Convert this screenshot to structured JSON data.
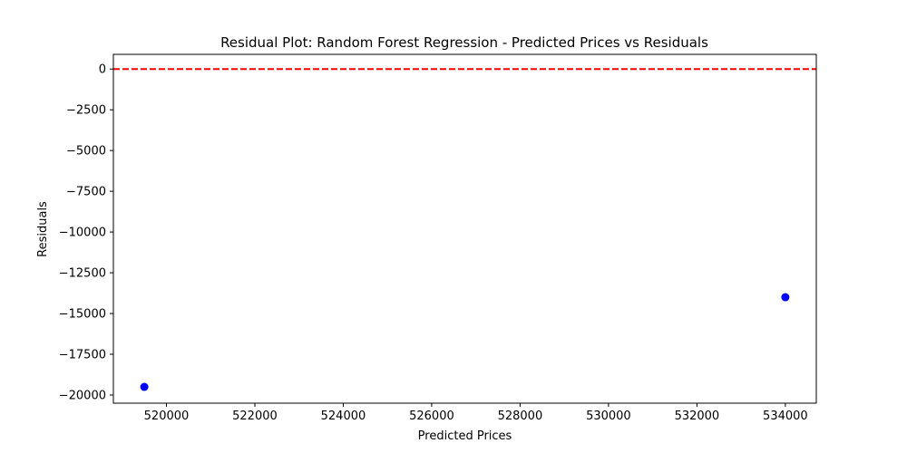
{
  "chart_data": {
    "type": "scatter",
    "title": "Residual Plot: Random Forest Regression - Predicted Prices vs Residuals",
    "xlabel": "Predicted Prices",
    "ylabel": "Residuals",
    "xlim": [
      518800,
      534700
    ],
    "ylim": [
      -20500,
      900
    ],
    "xticks": [
      520000,
      522000,
      524000,
      526000,
      528000,
      530000,
      532000,
      534000
    ],
    "xtick_labels": [
      "520000",
      "522000",
      "524000",
      "526000",
      "528000",
      "530000",
      "532000",
      "534000"
    ],
    "yticks": [
      0,
      -2500,
      -5000,
      -7500,
      -10000,
      -12500,
      -15000,
      -17500,
      -20000
    ],
    "ytick_labels": [
      "0",
      "−2500",
      "−5000",
      "−7500",
      "−10000",
      "−12500",
      "−15000",
      "−17500",
      "−20000"
    ],
    "grid": false,
    "series": [
      {
        "x": [
          519500,
          534000
        ],
        "y": [
          -19500,
          -14000
        ],
        "color": "#0000ff",
        "marker": "circle"
      }
    ],
    "reference_line": {
      "y": 0,
      "color": "#ff0000",
      "style": "dashed"
    }
  }
}
